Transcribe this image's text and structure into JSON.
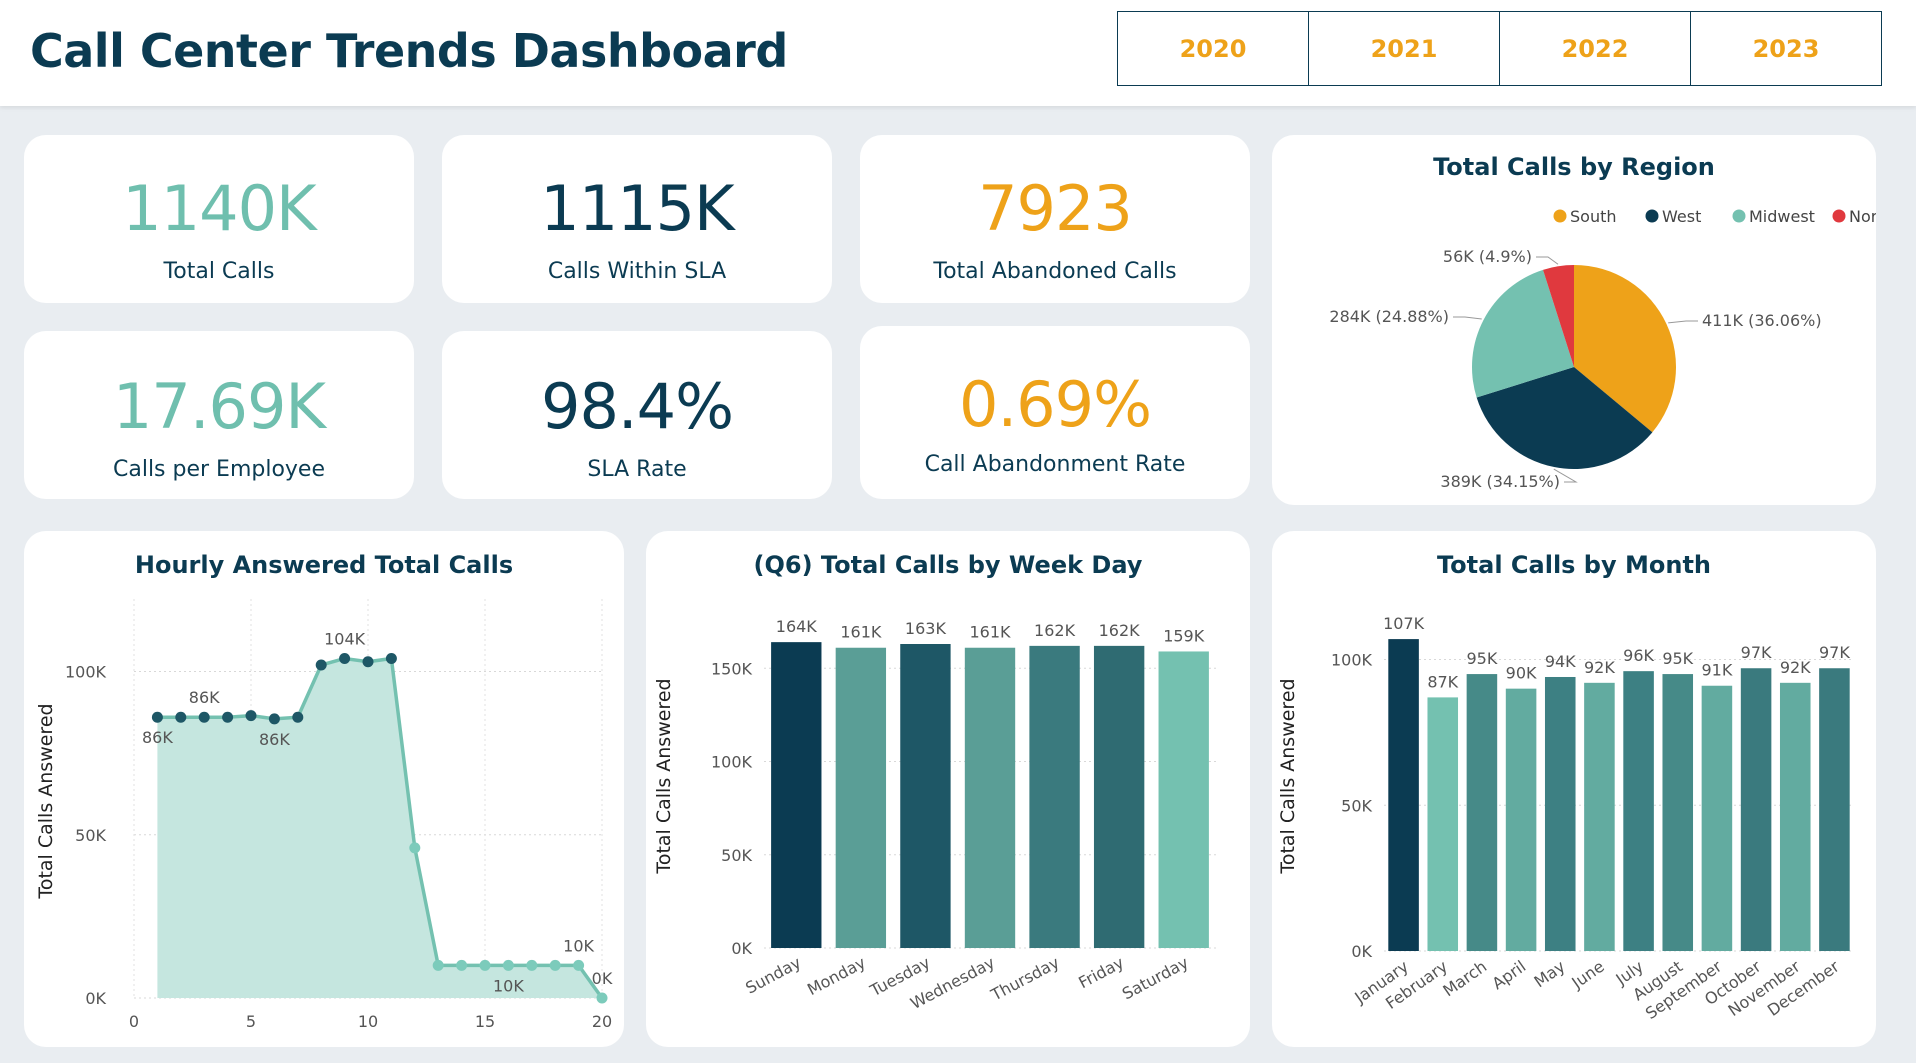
{
  "header": {
    "title": "Call Center Trends Dashboard",
    "years": [
      "2020",
      "2021",
      "2022",
      "2023"
    ]
  },
  "kpis": [
    {
      "value": "1140K",
      "label": "Total Calls",
      "color": "#6fbfae"
    },
    {
      "value": "1115K",
      "label": "Calls Within SLA",
      "color": "#0b3b52"
    },
    {
      "value": "7923",
      "label": "Total Abandoned Calls",
      "color": "#eea219"
    },
    {
      "value": "17.69K",
      "label": "Calls per Employee",
      "color": "#6fbfae"
    },
    {
      "value": "98.4%",
      "label": "SLA Rate",
      "color": "#0b3b52"
    },
    {
      "value": "0.69%",
      "label": "Call Abandonment Rate",
      "color": "#eea219"
    }
  ],
  "chart_data": [
    {
      "type": "pie",
      "title": "Total Calls by Region",
      "legend_position": "top-right",
      "slices": [
        {
          "name": "South",
          "value": 411,
          "label": "411K (36.06%)",
          "color": "#eea219"
        },
        {
          "name": "West",
          "value": 389,
          "label": "389K (34.15%)",
          "color": "#0b3b52"
        },
        {
          "name": "Midwest",
          "value": 284,
          "label": "284K (24.88%)",
          "color": "#74c1b0"
        },
        {
          "name": "Northeast",
          "value": 56,
          "label": "56K (4.9%)",
          "color": "#e0393e"
        }
      ]
    },
    {
      "type": "area",
      "title": "Hourly Answered Total Calls",
      "xlabel": "",
      "ylabel": "Total Calls Answered",
      "xlim": [
        0,
        20
      ],
      "ylim": [
        0,
        110000
      ],
      "xticks": [
        "0",
        "5",
        "10",
        "15",
        "20"
      ],
      "yticks": [
        "0K",
        "50K",
        "100K"
      ],
      "grid": true,
      "x": [
        1,
        2,
        3,
        4,
        5,
        6,
        7,
        8,
        9,
        10,
        11,
        12,
        13,
        14,
        15,
        16,
        17,
        18,
        19,
        20
      ],
      "values": [
        86000,
        86000,
        86000,
        86000,
        86500,
        85500,
        86000,
        102000,
        104000,
        103000,
        104000,
        46000,
        10000,
        10000,
        10000,
        10000,
        10000,
        10000,
        10000,
        0
      ],
      "data_labels": [
        {
          "index": 0,
          "text": "86K",
          "pos": "below"
        },
        {
          "index": 2,
          "text": "86K",
          "pos": "above"
        },
        {
          "index": 5,
          "text": "86K",
          "pos": "below"
        },
        {
          "index": 8,
          "text": "104K",
          "pos": "above"
        },
        {
          "index": 15,
          "text": "10K",
          "pos": "below"
        },
        {
          "index": 18,
          "text": "10K",
          "pos": "above"
        },
        {
          "index": 19,
          "text": "0K",
          "pos": "above"
        }
      ]
    },
    {
      "type": "bar",
      "title": "(Q6) Total Calls by Week Day",
      "xlabel": "",
      "ylabel": "Total Calls Answered",
      "ylim": [
        0,
        170000
      ],
      "yticks": [
        "0K",
        "50K",
        "100K",
        "150K"
      ],
      "categories": [
        "Sunday",
        "Monday",
        "Tuesday",
        "Wednesday",
        "Thursday",
        "Friday",
        "Saturday"
      ],
      "values": [
        164000,
        161000,
        163000,
        161000,
        162000,
        162000,
        159000
      ],
      "labels": [
        "164K",
        "161K",
        "163K",
        "161K",
        "162K",
        "162K",
        "159K"
      ],
      "colors": [
        "#0b3b52",
        "#5a9e96",
        "#1e5766",
        "#5a9e96",
        "#3a7a7e",
        "#2f6b72",
        "#74c1b0"
      ]
    },
    {
      "type": "bar",
      "title": "Total Calls by Month",
      "xlabel": "",
      "ylabel": "Total Calls Answered",
      "ylim": [
        0,
        115000
      ],
      "yticks": [
        "0K",
        "50K",
        "100K"
      ],
      "categories": [
        "January",
        "February",
        "March",
        "April",
        "May",
        "June",
        "July",
        "August",
        "September",
        "October",
        "November",
        "December"
      ],
      "values": [
        107000,
        87000,
        95000,
        90000,
        94000,
        92000,
        96000,
        95000,
        91000,
        97000,
        92000,
        97000
      ],
      "labels": [
        "107K",
        "87K",
        "95K",
        "90K",
        "94K",
        "92K",
        "96K",
        "95K",
        "91K",
        "97K",
        "92K",
        "97K"
      ],
      "colors": [
        "#0b3b52",
        "#74c1b0",
        "#468a88",
        "#62aba0",
        "#3d8083",
        "#62aba0",
        "#3d8083",
        "#468a88",
        "#62aba0",
        "#3a7a7e",
        "#62aba0",
        "#3a7a7e"
      ]
    }
  ]
}
